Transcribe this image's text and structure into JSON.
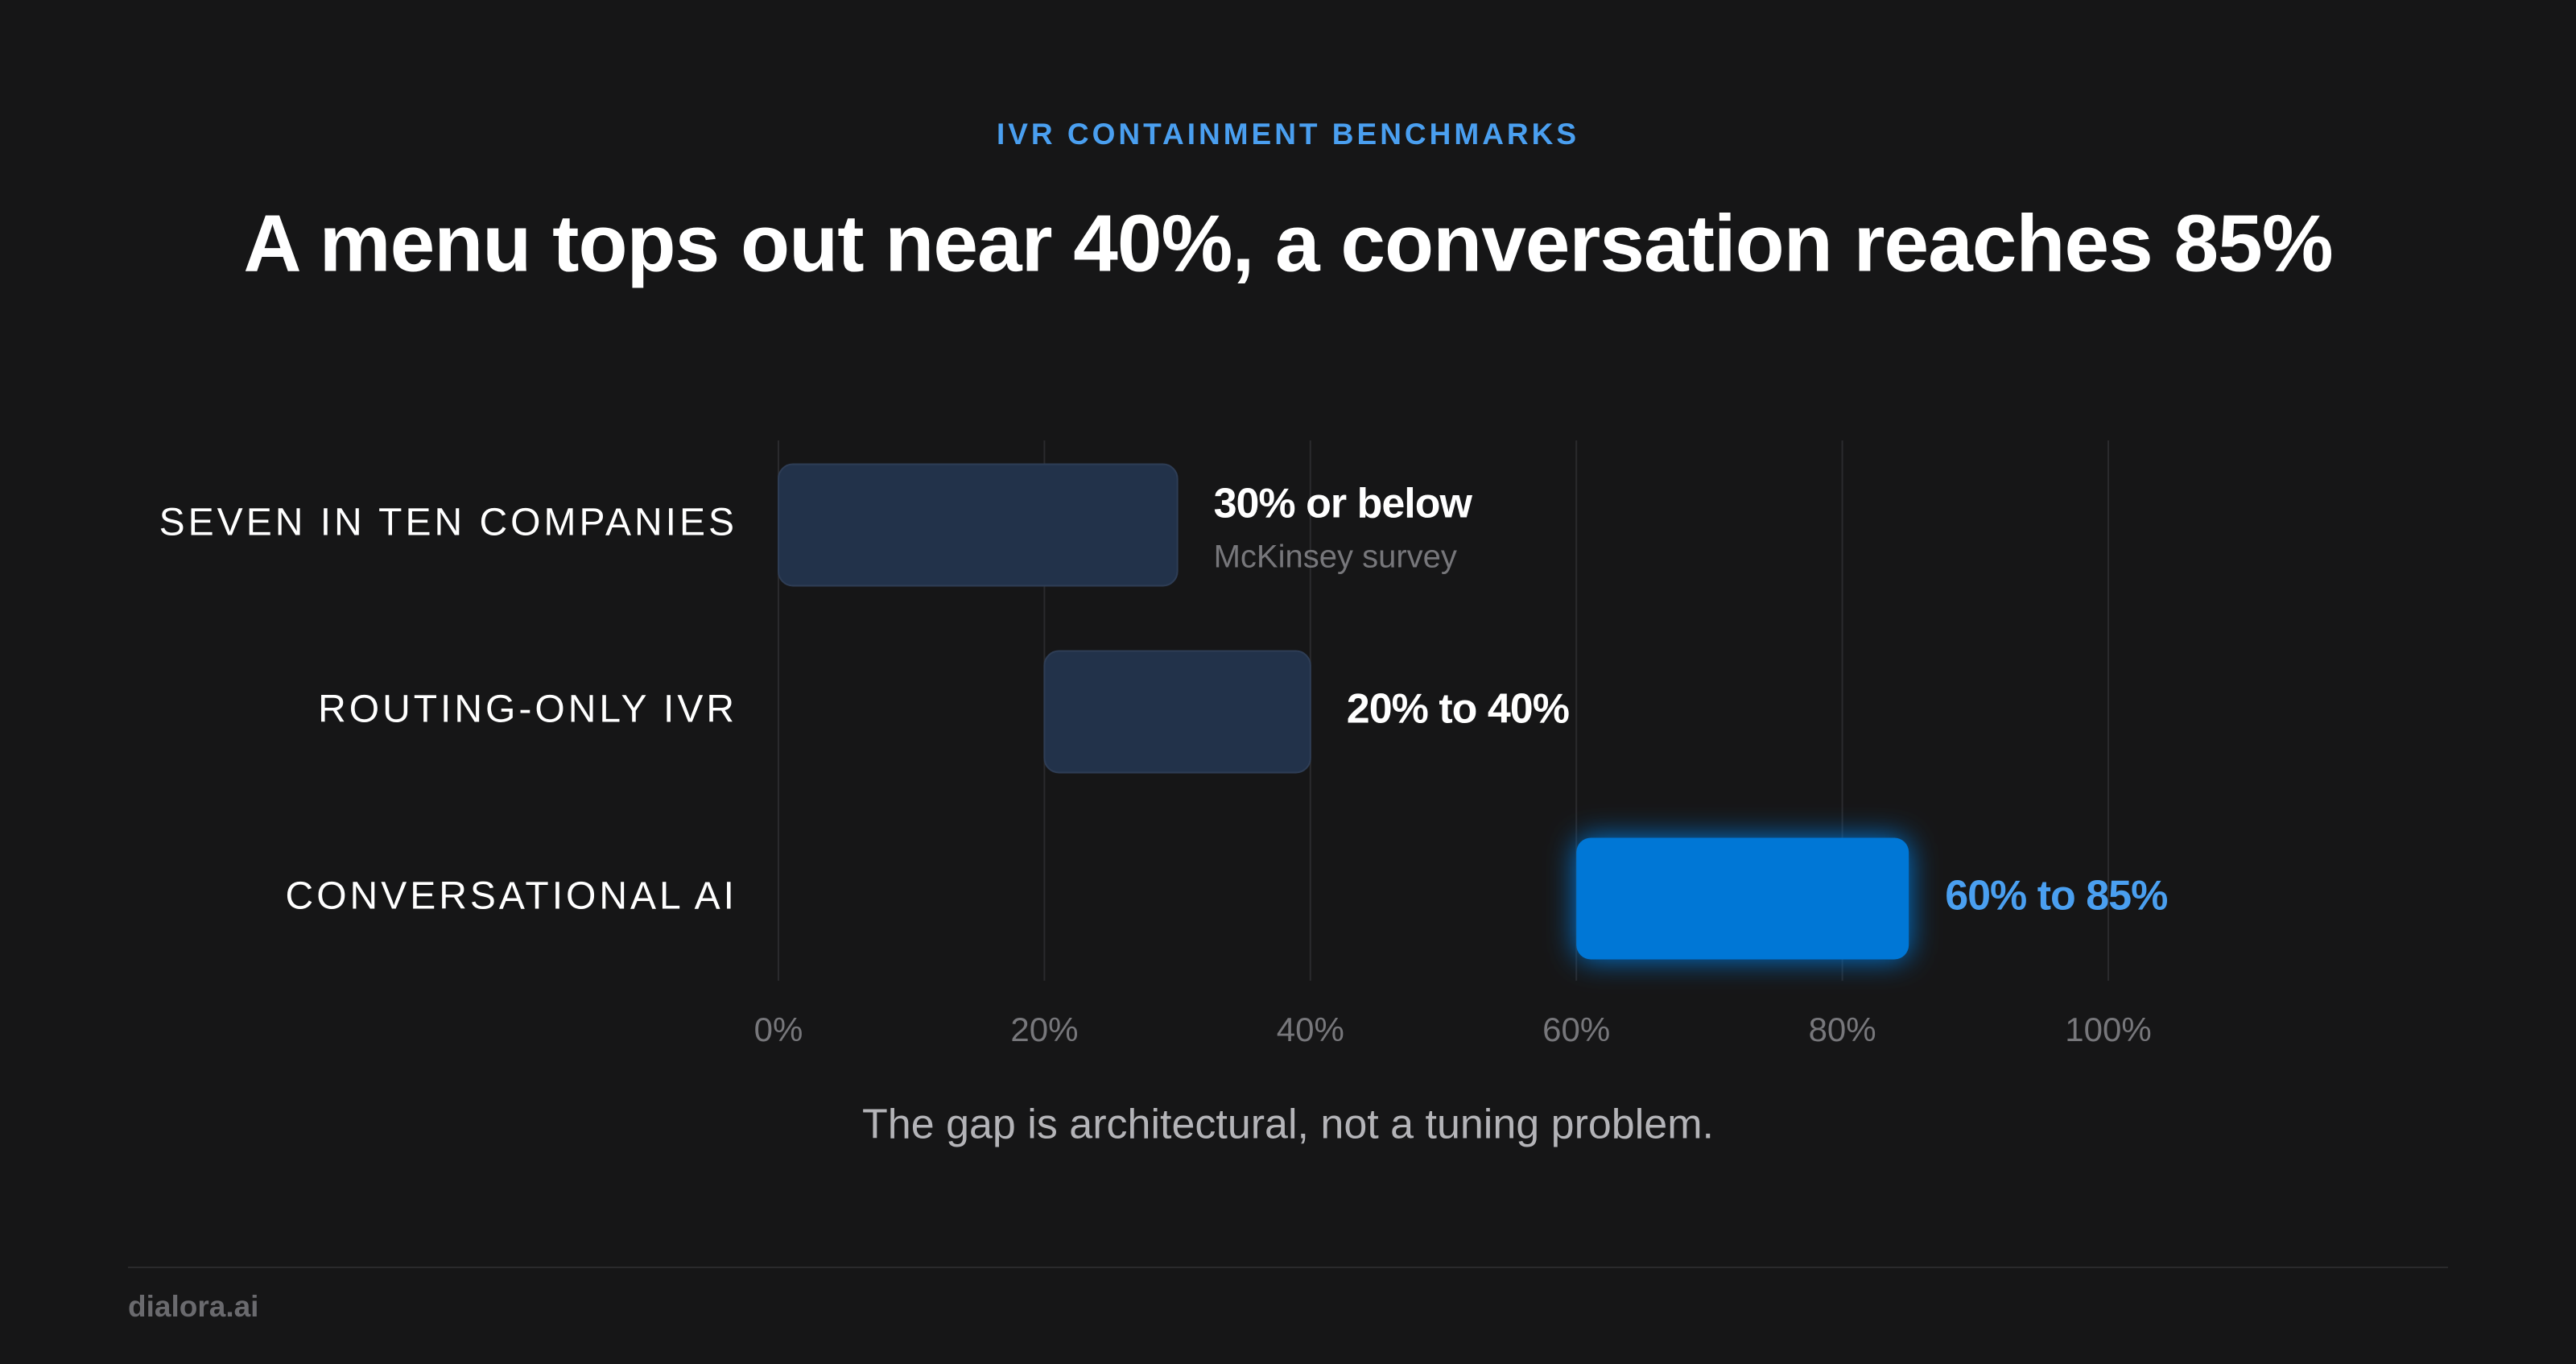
{
  "chart_data": {
    "type": "range-bar",
    "kicker": "IVR CONTAINMENT BENCHMARKS",
    "title": "A menu tops out near 40%, a conversation reaches 85%",
    "categories": [
      "SEVEN IN TEN COMPANIES",
      "ROUTING-ONLY IVR",
      "CONVERSATIONAL AI"
    ],
    "starts": [
      0,
      20,
      60
    ],
    "values": [
      30,
      40,
      85
    ],
    "value_labels": [
      "30% or below",
      "20% to 40%",
      "60% to 85%"
    ],
    "notes": [
      "McKinsey survey",
      null,
      null
    ],
    "colors": [
      "#22324a",
      "#22324a",
      "#0077d6"
    ],
    "label_colors": [
      "#ffffff",
      "#ffffff",
      "#4a9ff0"
    ],
    "xlim": [
      0,
      100
    ],
    "xticks": [
      {
        "value": 0,
        "label": "0%"
      },
      {
        "value": 20,
        "label": "20%"
      },
      {
        "value": 40,
        "label": "40%"
      },
      {
        "value": 60,
        "label": "60%"
      },
      {
        "value": 80,
        "label": "80%"
      },
      {
        "value": 100,
        "label": "100%"
      }
    ],
    "grid": true,
    "caption": "The gap is architectural, not a tuning problem."
  },
  "footer": {
    "brand": "dialora.ai"
  }
}
